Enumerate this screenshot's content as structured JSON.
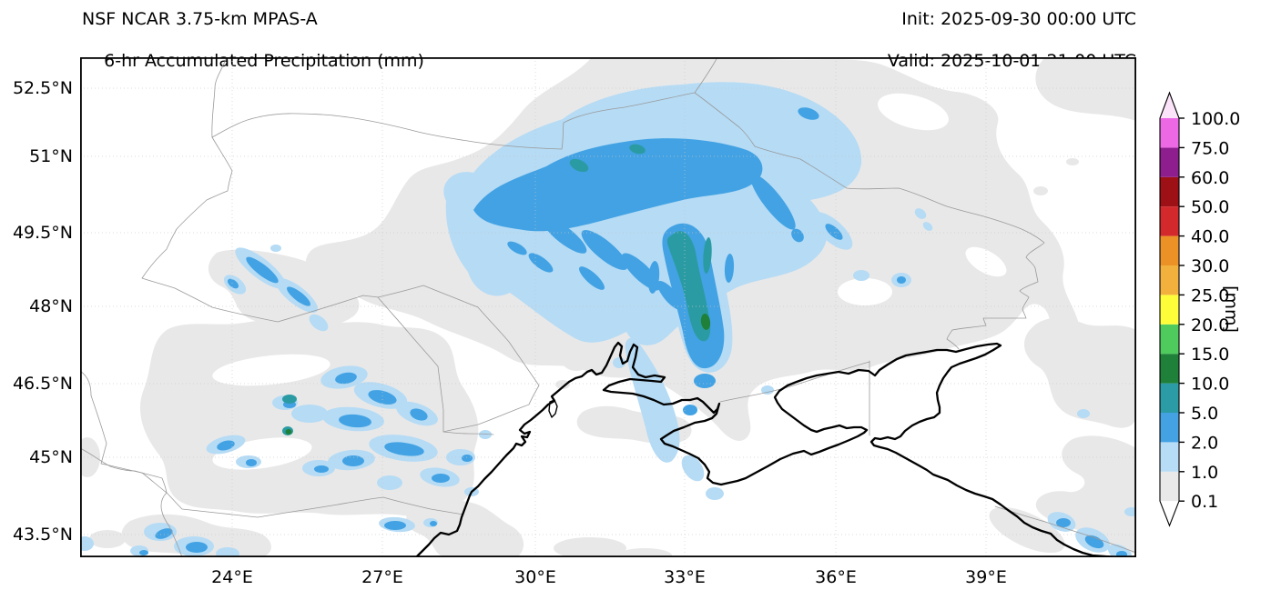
{
  "header": {
    "title_line1": "NSF NCAR 3.75-km MPAS-A",
    "title_line2": "6-hr Accumulated Precipitation (mm)",
    "init": "Init: 2025-09-30 00:00 UTC",
    "valid": "Valid: 2025-10-01 21:00 UTC"
  },
  "map": {
    "x_tick_labels": [
      "24°E",
      "27°E",
      "30°E",
      "33°E",
      "36°E",
      "39°E"
    ],
    "y_tick_labels": [
      "52.5°N",
      "51°N",
      "49.5°N",
      "48°N",
      "46.5°N",
      "45°N",
      "43.5°N"
    ]
  },
  "colorbar": {
    "unit": "[mm]",
    "tick_labels": [
      "0.1",
      "1.0",
      "2.0",
      "5.0",
      "10.0",
      "15.0",
      "20.0",
      "25.0",
      "30.0",
      "40.0",
      "50.0",
      "60.0",
      "75.0",
      "100.0"
    ],
    "levels": [
      0.1,
      1,
      2,
      5,
      10,
      15,
      20,
      25,
      30,
      40,
      50,
      60,
      75,
      100
    ],
    "segment_colors": [
      "#e9e9e9",
      "#b7dcf6",
      "#44a2e3",
      "#2b9ba5",
      "#1e8039",
      "#4ecb5c",
      "#fdfd3a",
      "#f2b13d",
      "#ec9126",
      "#d3292d",
      "#9d1015",
      "#8e1d8e",
      "#ec68e4"
    ],
    "over_arrow_color": "#fbe3f9",
    "under_arrow_color": "#ffffff"
  }
}
